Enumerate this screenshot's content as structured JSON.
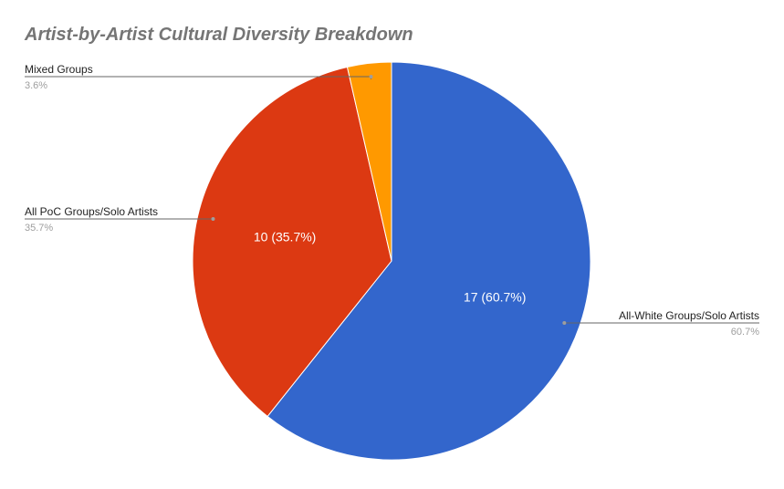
{
  "chart_data": {
    "type": "pie",
    "title": "Artist-by-Artist Cultural Diversity Breakdown",
    "slices": [
      {
        "label": "All-White Groups/Solo Artists",
        "value": 17,
        "percent_label": "60.7%",
        "data_label": "17 (60.7%)",
        "color": "#3366cc"
      },
      {
        "label": "All PoC Groups/Solo Artists",
        "value": 10,
        "percent_label": "35.7%",
        "data_label": "10 (35.7%)",
        "color": "#dc3912"
      },
      {
        "label": "Mixed Groups",
        "value": 1,
        "percent_label": "3.6%",
        "data_label": "",
        "color": "#ff9900"
      }
    ],
    "start_angle_deg": 0,
    "direction": "clockwise",
    "legend": "labeled"
  }
}
